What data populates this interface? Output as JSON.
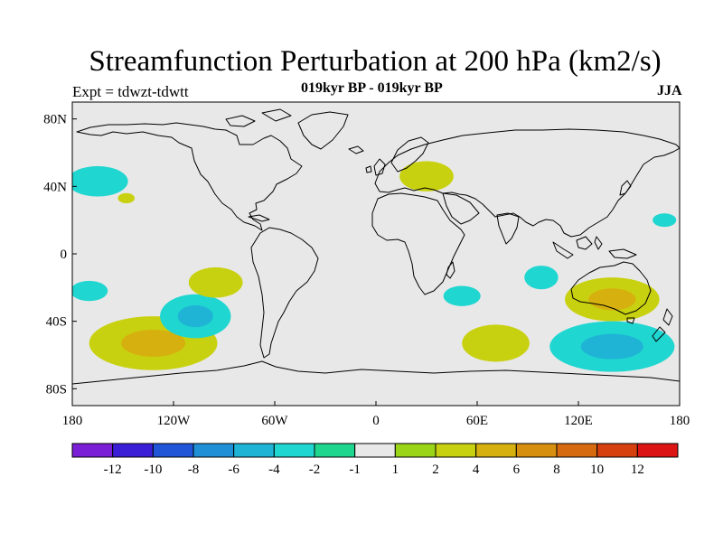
{
  "title": "Streamfunction Perturbation at 200 hPa (km2/s)",
  "subtitle": "019kyr BP - 019kyr BP",
  "left_label": "Expt = tdwzt-tdwtt",
  "right_label": "JJA",
  "map": {
    "projection": "cylindrical equidistant",
    "lon_range": [
      -180,
      180
    ],
    "lat_range": [
      -90,
      90
    ],
    "background_color": "#e8e8e8",
    "x_ticks": [
      {
        "lon": -180,
        "label": "180"
      },
      {
        "lon": -120,
        "label": "120W"
      },
      {
        "lon": -60,
        "label": "60W"
      },
      {
        "lon": 0,
        "label": "0"
      },
      {
        "lon": 60,
        "label": "60E"
      },
      {
        "lon": 120,
        "label": "120E"
      },
      {
        "lon": 180,
        "label": "180"
      }
    ],
    "y_ticks": [
      {
        "lat": 80,
        "label": "80N"
      },
      {
        "lat": 40,
        "label": "40N"
      },
      {
        "lat": 0,
        "label": "0"
      },
      {
        "lat": -40,
        "label": "40S"
      },
      {
        "lat": -80,
        "label": "80S"
      }
    ]
  },
  "colorbar": {
    "colors": [
      "#7a1fd6",
      "#3a1fd6",
      "#1f55d6",
      "#1f8fd6",
      "#1fb4d6",
      "#1fd6d0",
      "#1fd68f",
      "#e8e8e8",
      "#9ad617",
      "#c8d10f",
      "#d6b00f",
      "#d68f0f",
      "#d66a0f",
      "#d6400f",
      "#dd1414"
    ],
    "labels": [
      "-12",
      "-10",
      "-8",
      "-6",
      "-4",
      "-2",
      "-1",
      "1",
      "2",
      "4",
      "6",
      "8",
      "10",
      "12"
    ]
  },
  "chart_data": {
    "type": "contour-map",
    "variable": "Streamfunction Perturbation at 200 hPa",
    "units": "km2/s",
    "season": "JJA",
    "anomalies": [
      {
        "lon": -165,
        "lat": 43,
        "rx": 18,
        "ry": 9,
        "levels": [
          "-2"
        ]
      },
      {
        "lon": -148,
        "lat": 33,
        "rx": 5,
        "ry": 3,
        "levels": [
          "2"
        ]
      },
      {
        "lon": -170,
        "lat": -22,
        "rx": 11,
        "ry": 6,
        "levels": [
          "-2"
        ]
      },
      {
        "lon": -132,
        "lat": -53,
        "rx": 38,
        "ry": 16,
        "levels": [
          "2",
          "4"
        ]
      },
      {
        "lon": -107,
        "lat": -37,
        "rx": 21,
        "ry": 13,
        "levels": [
          "-2",
          "-4"
        ]
      },
      {
        "lon": -95,
        "lat": -17,
        "rx": 16,
        "ry": 9,
        "levels": [
          "2"
        ]
      },
      {
        "lon": 30,
        "lat": 46,
        "rx": 16,
        "ry": 9,
        "levels": [
          "2"
        ]
      },
      {
        "lon": 51,
        "lat": -25,
        "rx": 11,
        "ry": 6,
        "levels": [
          "-2"
        ]
      },
      {
        "lon": 71,
        "lat": -53,
        "rx": 20,
        "ry": 11,
        "levels": [
          "2"
        ]
      },
      {
        "lon": 98,
        "lat": -14,
        "rx": 10,
        "ry": 7,
        "levels": [
          "-2"
        ]
      },
      {
        "lon": 140,
        "lat": -27,
        "rx": 28,
        "ry": 13,
        "levels": [
          "2",
          "4"
        ]
      },
      {
        "lon": 140,
        "lat": -55,
        "rx": 37,
        "ry": 15,
        "levels": [
          "-2",
          "-4"
        ]
      },
      {
        "lon": 171,
        "lat": 20,
        "rx": 7,
        "ry": 4,
        "levels": [
          "-2"
        ]
      }
    ]
  }
}
